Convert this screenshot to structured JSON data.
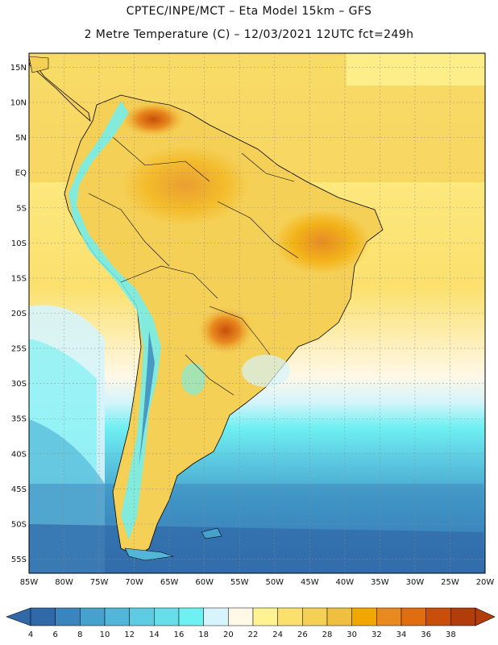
{
  "header": {
    "line1": "CPTEC/INPE/MCT –  Eta Model 15km – GFS",
    "line2": "2 Metre Temperature (C) – 12/03/2021 12UTC fct=249h"
  },
  "map": {
    "lon_range": [
      -85,
      -20
    ],
    "lat_range": [
      -57,
      17
    ],
    "lat_ticks": [
      "15N",
      "10N",
      "5N",
      "EQ",
      "5S",
      "10S",
      "15S",
      "20S",
      "25S",
      "30S",
      "35S",
      "40S",
      "45S",
      "50S",
      "55S"
    ],
    "lon_ticks": [
      "85W",
      "80W",
      "75W",
      "70W",
      "65W",
      "60W",
      "55W",
      "50W",
      "45W",
      "40W",
      "35W",
      "30W",
      "25W",
      "20W"
    ]
  },
  "colorbar": {
    "labels": [
      "4",
      "6",
      "8",
      "10",
      "12",
      "14",
      "16",
      "18",
      "20",
      "22",
      "24",
      "26",
      "28",
      "30",
      "32",
      "34",
      "36",
      "38"
    ],
    "colors": [
      "#3068a8",
      "#3a85bd",
      "#46a2cc",
      "#52b6d8",
      "#5dcbe2",
      "#67dde8",
      "#6ff0f2",
      "#d6f4fb",
      "#fff8e6",
      "#fff293",
      "#fbe06d",
      "#f5d056",
      "#efbf3e",
      "#f2a700",
      "#e98a1f",
      "#e06d0f",
      "#c84e0a",
      "#b33d0a"
    ]
  }
}
